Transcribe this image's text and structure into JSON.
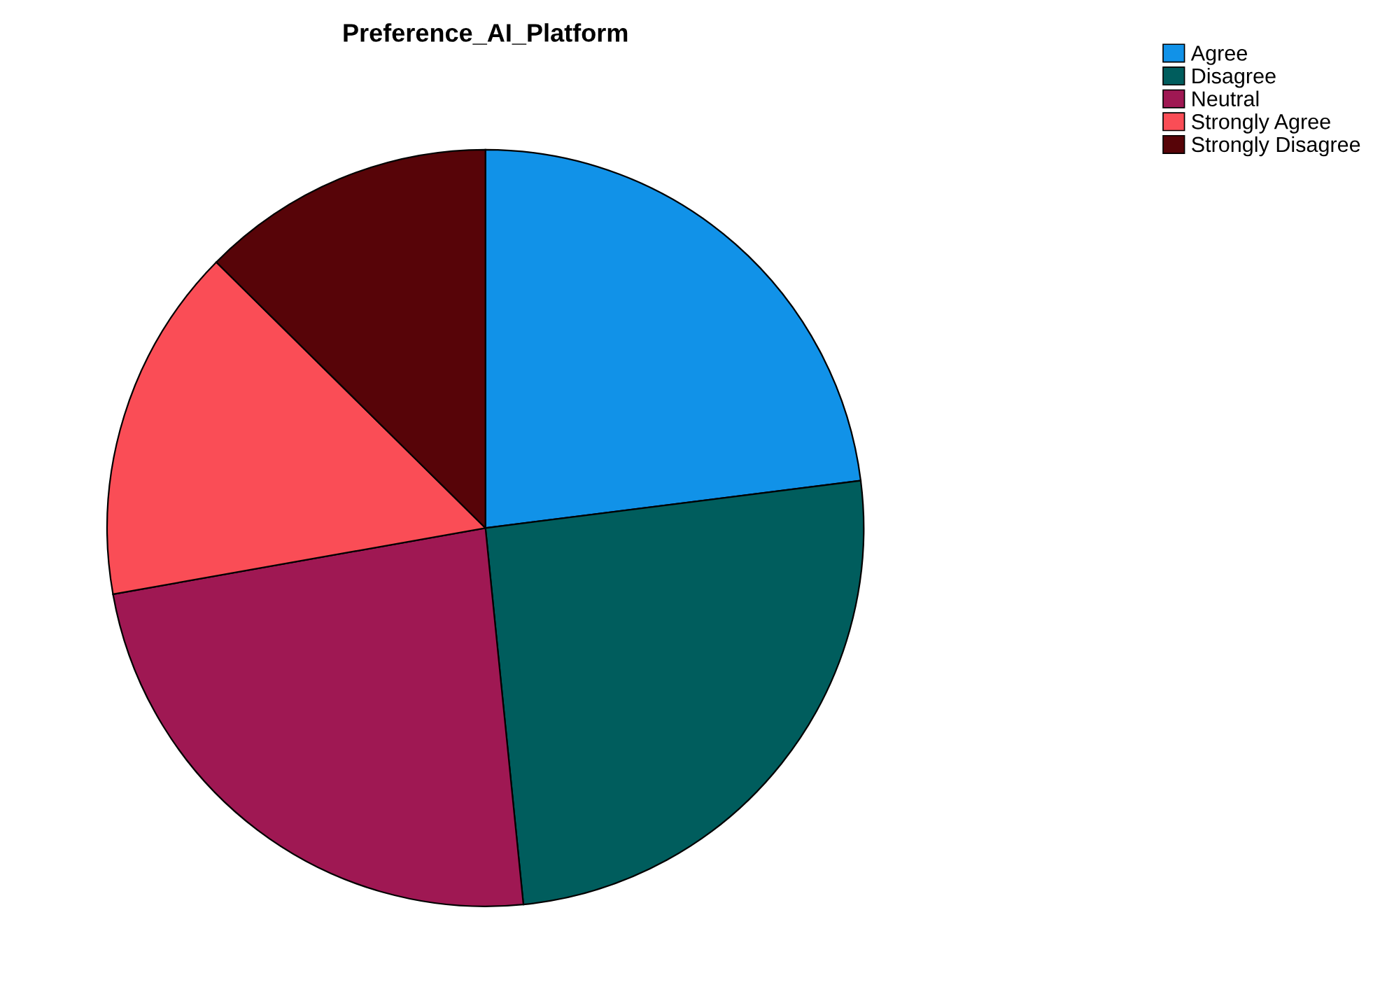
{
  "chart_data": {
    "type": "pie",
    "title": "Preference_AI_Platform",
    "categories": [
      "Agree",
      "Disagree",
      "Neutral",
      "Strongly Agree",
      "Strongly Disagree"
    ],
    "values": [
      23.0,
      25.4,
      23.8,
      15.2,
      12.6
    ],
    "colors": [
      "#1192e8",
      "#005d5d",
      "#9f1853",
      "#fa4d56",
      "#570408"
    ],
    "legend": "top right"
  }
}
